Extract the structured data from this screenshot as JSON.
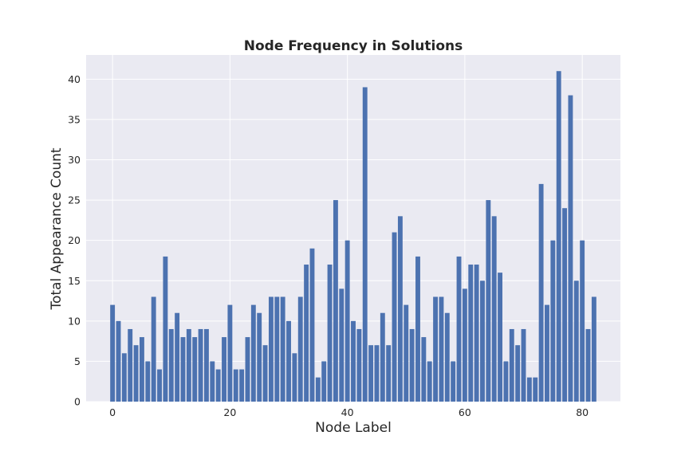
{
  "chart_data": {
    "type": "bar",
    "title": "Node Frequency in Solutions",
    "xlabel": "Node Label",
    "ylabel": "Total Appearance Count",
    "x": [
      0,
      1,
      2,
      3,
      4,
      5,
      6,
      7,
      8,
      9,
      10,
      11,
      12,
      13,
      14,
      15,
      16,
      17,
      18,
      19,
      20,
      21,
      22,
      23,
      24,
      25,
      26,
      27,
      28,
      29,
      30,
      31,
      32,
      33,
      34,
      35,
      36,
      37,
      38,
      39,
      40,
      41,
      42,
      43,
      44,
      45,
      46,
      47,
      48,
      49,
      50,
      51,
      52,
      53,
      54,
      55,
      56,
      57,
      58,
      59,
      60,
      61,
      62,
      63,
      64,
      65,
      66,
      67,
      68,
      69,
      70,
      71,
      72,
      73,
      74,
      75,
      76,
      77,
      78,
      79,
      80,
      81,
      82
    ],
    "values": [
      12,
      10,
      6,
      9,
      7,
      8,
      5,
      13,
      4,
      18,
      9,
      11,
      8,
      9,
      8,
      9,
      9,
      5,
      4,
      8,
      12,
      4,
      4,
      8,
      12,
      11,
      7,
      13,
      13,
      13,
      10,
      6,
      13,
      17,
      19,
      3,
      5,
      17,
      25,
      14,
      20,
      10,
      9,
      39,
      7,
      7,
      11,
      7,
      21,
      23,
      12,
      9,
      18,
      8,
      5,
      13,
      13,
      11,
      5,
      18,
      14,
      17,
      17,
      15,
      25,
      23,
      16,
      5,
      9,
      7,
      9,
      3,
      3,
      27,
      12,
      20,
      41,
      24,
      38,
      15,
      20,
      9,
      13
    ],
    "xticks": [
      0,
      20,
      40,
      60,
      80
    ],
    "yticks": [
      0,
      5,
      10,
      15,
      20,
      25,
      30,
      35,
      40
    ],
    "xlim": [
      -4.5,
      86.5
    ],
    "ylim": [
      0,
      43
    ],
    "grid": true,
    "colors": {
      "bar": "#4c72b0",
      "plot_background": "#eaeaf2",
      "grid": "#ffffff",
      "text": "#262626"
    }
  }
}
